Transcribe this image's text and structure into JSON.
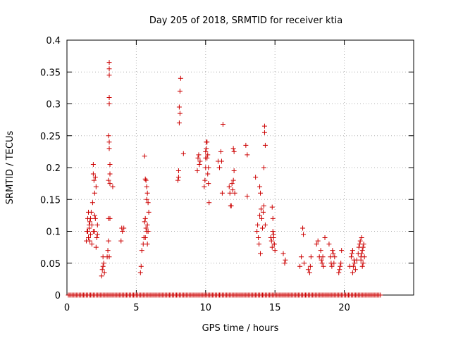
{
  "chart_data": {
    "type": "scatter",
    "title": "Day 205 of 2018, SRMTID for receiver ktia",
    "xlabel": "GPS time / hours",
    "ylabel": "SRMTID / TECUs",
    "xlim": [
      0,
      25
    ],
    "ylim": [
      0,
      0.4
    ],
    "x_ticks": [
      0,
      5,
      10,
      15,
      20
    ],
    "x_tick_labels": [
      "0",
      "5",
      "10",
      "15",
      "20"
    ],
    "y_ticks": [
      0,
      0.05,
      0.1,
      0.15,
      0.2,
      0.25,
      0.3,
      0.35,
      0.4
    ],
    "y_tick_labels": [
      "0",
      "0.05",
      "0.1",
      "0.15",
      "0.2",
      "0.25",
      "0.3",
      "0.35",
      "0.4"
    ],
    "grid": true,
    "marker": "+",
    "marker_color": "#cc0000",
    "series": [
      {
        "name": "SRMTID",
        "points": [
          [
            1.4,
            0.085
          ],
          [
            1.45,
            0.1
          ],
          [
            1.5,
            0.12
          ],
          [
            1.55,
            0.09
          ],
          [
            1.6,
            0.105
          ],
          [
            1.65,
            0.115
          ],
          [
            1.7,
            0.095
          ],
          [
            1.75,
            0.13
          ],
          [
            1.8,
            0.11
          ],
          [
            1.85,
            0.145
          ],
          [
            1.9,
            0.205
          ],
          [
            1.9,
            0.19
          ],
          [
            1.95,
            0.18
          ],
          [
            2.0,
            0.16
          ],
          [
            2.0,
            0.1
          ],
          [
            2.05,
            0.185
          ],
          [
            2.05,
            0.12
          ],
          [
            2.1,
            0.17
          ],
          [
            2.1,
            0.075
          ],
          [
            2.15,
            0.09
          ],
          [
            2.2,
            0.11
          ],
          [
            2.2,
            0.095
          ],
          [
            1.5,
            0.1
          ],
          [
            1.6,
            0.11
          ],
          [
            1.7,
            0.12
          ],
          [
            1.8,
            0.08
          ],
          [
            1.9,
            0.1
          ],
          [
            2.0,
            0.125
          ],
          [
            1.55,
            0.13
          ],
          [
            1.65,
            0.085
          ],
          [
            2.5,
            0.03
          ],
          [
            2.55,
            0.04
          ],
          [
            2.6,
            0.06
          ],
          [
            2.65,
            0.05
          ],
          [
            2.7,
            0.035
          ],
          [
            2.6,
            0.045
          ],
          [
            2.9,
            0.06
          ],
          [
            2.95,
            0.07
          ],
          [
            3.0,
            0.085
          ],
          [
            3.0,
            0.12
          ],
          [
            3.0,
            0.18
          ],
          [
            3.0,
            0.25
          ],
          [
            3.05,
            0.23
          ],
          [
            3.05,
            0.3
          ],
          [
            3.05,
            0.31
          ],
          [
            3.05,
            0.345
          ],
          [
            3.05,
            0.355
          ],
          [
            3.05,
            0.365
          ],
          [
            3.05,
            0.24
          ],
          [
            3.1,
            0.19
          ],
          [
            3.1,
            0.205
          ],
          [
            3.1,
            0.175
          ],
          [
            3.1,
            0.12
          ],
          [
            3.05,
            0.06
          ],
          [
            3.3,
            0.17
          ],
          [
            3.9,
            0.085
          ],
          [
            3.95,
            0.105
          ],
          [
            4.0,
            0.1
          ],
          [
            4.1,
            0.105
          ],
          [
            5.3,
            0.035
          ],
          [
            5.35,
            0.045
          ],
          [
            5.4,
            0.07
          ],
          [
            5.5,
            0.08
          ],
          [
            5.55,
            0.09
          ],
          [
            5.6,
            0.115
          ],
          [
            5.65,
            0.12
          ],
          [
            5.7,
            0.105
          ],
          [
            5.75,
            0.1
          ],
          [
            5.8,
            0.11
          ],
          [
            5.85,
            0.1
          ],
          [
            5.6,
            0.218
          ],
          [
            5.65,
            0.182
          ],
          [
            5.7,
            0.18
          ],
          [
            5.75,
            0.17
          ],
          [
            5.8,
            0.16
          ],
          [
            5.85,
            0.145
          ],
          [
            5.9,
            0.13
          ],
          [
            5.75,
            0.15
          ],
          [
            5.8,
            0.08
          ],
          [
            5.65,
            0.09
          ],
          [
            8.0,
            0.18
          ],
          [
            8.05,
            0.185
          ],
          [
            8.05,
            0.195
          ],
          [
            8.1,
            0.27
          ],
          [
            8.1,
            0.295
          ],
          [
            8.15,
            0.285
          ],
          [
            8.15,
            0.32
          ],
          [
            8.2,
            0.34
          ],
          [
            8.4,
            0.222
          ],
          [
            9.4,
            0.195
          ],
          [
            9.45,
            0.215
          ],
          [
            9.5,
            0.22
          ],
          [
            9.55,
            0.205
          ],
          [
            9.6,
            0.21
          ],
          [
            9.9,
            0.17
          ],
          [
            9.95,
            0.18
          ],
          [
            10.0,
            0.2
          ],
          [
            10.0,
            0.215
          ],
          [
            10.0,
            0.225
          ],
          [
            10.05,
            0.23
          ],
          [
            10.05,
            0.24
          ],
          [
            10.1,
            0.24
          ],
          [
            10.1,
            0.215
          ],
          [
            10.15,
            0.22
          ],
          [
            10.15,
            0.19
          ],
          [
            10.2,
            0.175
          ],
          [
            10.2,
            0.2
          ],
          [
            10.25,
            0.145
          ],
          [
            10.9,
            0.21
          ],
          [
            11.0,
            0.2
          ],
          [
            11.1,
            0.225
          ],
          [
            11.15,
            0.21
          ],
          [
            11.2,
            0.16
          ],
          [
            11.25,
            0.268
          ],
          [
            11.7,
            0.17
          ],
          [
            11.75,
            0.16
          ],
          [
            11.8,
            0.14
          ],
          [
            11.85,
            0.14
          ],
          [
            11.9,
            0.175
          ],
          [
            11.95,
            0.165
          ],
          [
            12.0,
            0.18
          ],
          [
            12.05,
            0.195
          ],
          [
            12.0,
            0.23
          ],
          [
            12.05,
            0.225
          ],
          [
            12.1,
            0.16
          ],
          [
            12.9,
            0.235
          ],
          [
            13.0,
            0.22
          ],
          [
            13.0,
            0.155
          ],
          [
            13.6,
            0.185
          ],
          [
            13.7,
            0.1
          ],
          [
            13.75,
            0.11
          ],
          [
            13.8,
            0.09
          ],
          [
            13.85,
            0.08
          ],
          [
            13.9,
            0.125
          ],
          [
            13.95,
            0.065
          ],
          [
            13.9,
            0.17
          ],
          [
            13.95,
            0.16
          ],
          [
            14.0,
            0.135
          ],
          [
            14.05,
            0.12
          ],
          [
            14.1,
            0.105
          ],
          [
            14.15,
            0.13
          ],
          [
            14.2,
            0.14
          ],
          [
            14.2,
            0.2
          ],
          [
            14.25,
            0.255
          ],
          [
            14.25,
            0.265
          ],
          [
            14.3,
            0.235
          ],
          [
            14.3,
            0.11
          ],
          [
            14.7,
            0.09
          ],
          [
            14.75,
            0.085
          ],
          [
            14.8,
            0.075
          ],
          [
            14.85,
            0.1
          ],
          [
            14.9,
            0.095
          ],
          [
            14.95,
            0.08
          ],
          [
            15.0,
            0.07
          ],
          [
            14.8,
            0.138
          ],
          [
            14.85,
            0.12
          ],
          [
            14.9,
            0.09
          ],
          [
            14.95,
            0.08
          ],
          [
            15.6,
            0.065
          ],
          [
            15.7,
            0.05
          ],
          [
            15.75,
            0.055
          ],
          [
            16.8,
            0.045
          ],
          [
            16.9,
            0.06
          ],
          [
            17.0,
            0.105
          ],
          [
            17.05,
            0.095
          ],
          [
            17.1,
            0.05
          ],
          [
            17.4,
            0.04
          ],
          [
            17.5,
            0.035
          ],
          [
            17.55,
            0.045
          ],
          [
            17.6,
            0.06
          ],
          [
            18.0,
            0.08
          ],
          [
            18.1,
            0.085
          ],
          [
            18.2,
            0.06
          ],
          [
            18.3,
            0.07
          ],
          [
            18.35,
            0.055
          ],
          [
            18.4,
            0.05
          ],
          [
            18.45,
            0.06
          ],
          [
            18.5,
            0.045
          ],
          [
            18.6,
            0.09
          ],
          [
            18.9,
            0.08
          ],
          [
            19.0,
            0.06
          ],
          [
            19.05,
            0.05
          ],
          [
            19.1,
            0.045
          ],
          [
            19.15,
            0.07
          ],
          [
            19.2,
            0.065
          ],
          [
            19.25,
            0.05
          ],
          [
            19.3,
            0.06
          ],
          [
            19.6,
            0.035
          ],
          [
            19.65,
            0.04
          ],
          [
            19.7,
            0.045
          ],
          [
            19.75,
            0.05
          ],
          [
            19.8,
            0.07
          ],
          [
            20.4,
            0.045
          ],
          [
            20.5,
            0.06
          ],
          [
            20.55,
            0.065
          ],
          [
            20.6,
            0.07
          ],
          [
            20.7,
            0.055
          ],
          [
            20.75,
            0.05
          ],
          [
            20.8,
            0.04
          ],
          [
            21.0,
            0.065
          ],
          [
            21.05,
            0.075
          ],
          [
            21.1,
            0.08
          ],
          [
            21.15,
            0.085
          ],
          [
            21.2,
            0.06
          ],
          [
            21.25,
            0.09
          ],
          [
            21.3,
            0.07
          ],
          [
            21.35,
            0.05
          ],
          [
            21.3,
            0.045
          ],
          [
            21.2,
            0.055
          ],
          [
            21.25,
            0.065
          ],
          [
            21.35,
            0.075
          ],
          [
            21.4,
            0.08
          ],
          [
            21.45,
            0.06
          ],
          [
            20.6,
            0.035
          ],
          [
            20.65,
            0.045
          ],
          [
            20.9,
            0.055
          ]
        ],
        "zero_baseline": {
          "x_start": 0.1,
          "x_end": 22.6,
          "step": 0.1,
          "y": 0
        }
      }
    ]
  }
}
